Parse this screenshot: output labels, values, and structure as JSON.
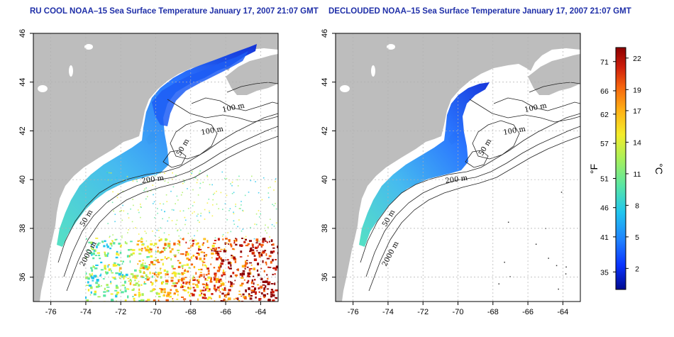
{
  "titles": {
    "left": "RU COOL NOAA–15 Sea Surface Temperature January 17, 2007 21:07 GMT",
    "right": "DECLOUDED NOAA–15 Sea Surface Temperature January 17, 2007 21:07 GMT"
  },
  "axes": {
    "x_ticks": [
      "-76",
      "-74",
      "-72",
      "-70",
      "-68",
      "-66",
      "-64"
    ],
    "x_values": [
      -76,
      -74,
      -72,
      -70,
      -68,
      -66,
      -64
    ],
    "y_ticks": [
      "36",
      "38",
      "40",
      "42",
      "44",
      "46"
    ],
    "y_values": [
      36,
      38,
      40,
      42,
      44,
      46
    ],
    "xlim": [
      -77,
      -63
    ],
    "ylim": [
      35,
      46
    ]
  },
  "contours": {
    "left": [
      "100 m",
      "100 m",
      "50 m",
      "200 m",
      "50 m",
      "2000 m"
    ],
    "right": [
      "100 m",
      "100 m",
      "50 m",
      "200 m",
      "50 m",
      "2000 m"
    ]
  },
  "colorbar": {
    "fahrenheit_ticks": [
      "71",
      "66",
      "62",
      "57",
      "51",
      "46",
      "41",
      "35"
    ],
    "fahrenheit_values": [
      71,
      66,
      62,
      57,
      51,
      46,
      41,
      35
    ],
    "celsius_ticks": [
      "22",
      "19",
      "17",
      "14",
      "11",
      "8",
      "5",
      "2"
    ],
    "celsius_values": [
      22,
      19,
      17,
      14,
      11,
      8,
      5,
      2
    ],
    "celsius_range": [
      0,
      23
    ],
    "unit_f": "°F",
    "unit_c": "°C"
  },
  "colors": {
    "title": "#1f2fa8",
    "land": "#bdbdbd",
    "water_background": "#ffffff",
    "grid": "#b0b0b0",
    "colorscale": [
      "#000a8f",
      "#0a33ff",
      "#1f7fff",
      "#20c6ee",
      "#59e6a4",
      "#a8f05a",
      "#f4ec2a",
      "#ffb114",
      "#f5620d",
      "#cd1d0b",
      "#8c0000"
    ]
  }
}
